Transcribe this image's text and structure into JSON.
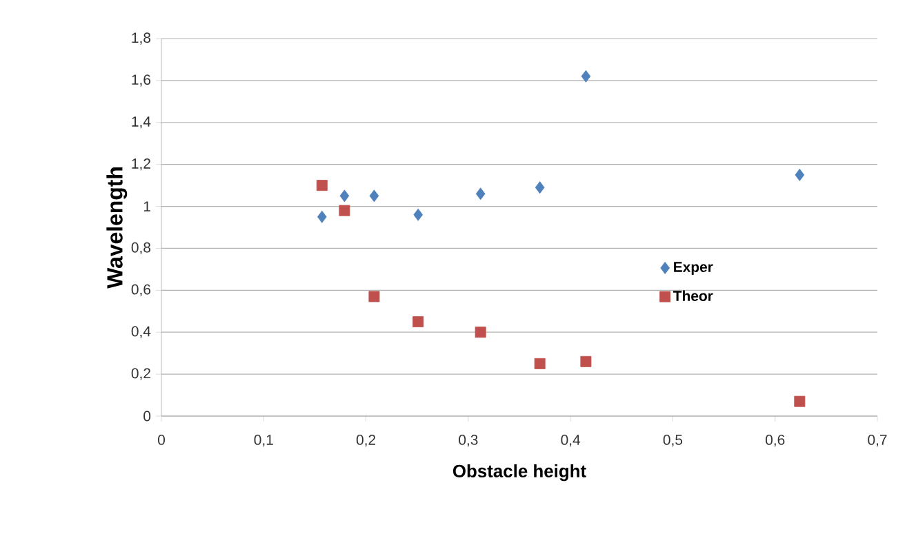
{
  "chart_data": {
    "type": "scatter",
    "xlabel": "Obstacle height",
    "ylabel": "Wavelength",
    "xlim": [
      0,
      0.7
    ],
    "ylim": [
      0,
      1.8
    ],
    "xticks": [
      0,
      {
        "value": 0.1,
        "label": "0,1"
      },
      {
        "value": 0.2,
        "label": "0,2"
      },
      {
        "value": 0.3,
        "label": "0,3"
      },
      {
        "value": 0.4,
        "label": "0,4"
      },
      {
        "value": 0.5,
        "label": "0,5"
      },
      {
        "value": 0.6,
        "label": "0,6"
      },
      {
        "value": 0.7,
        "label": "0,7"
      }
    ],
    "yticks": [
      0,
      {
        "value": 0.2,
        "label": "0,2"
      },
      {
        "value": 0.4,
        "label": "0,4"
      },
      {
        "value": 0.6,
        "label": "0,6"
      },
      {
        "value": 0.8,
        "label": "0,8"
      },
      1,
      {
        "value": 1.2,
        "label": "1,2"
      },
      {
        "value": 1.4,
        "label": "1,4"
      },
      {
        "value": 1.6,
        "label": "1,6"
      },
      {
        "value": 1.8,
        "label": "1,8"
      }
    ],
    "grid": "y",
    "legend": "right",
    "series": [
      {
        "name": "Exper",
        "color": "#4f81bd",
        "marker": "diamond",
        "x": [
          0.157,
          0.179,
          0.208,
          0.251,
          0.312,
          0.37,
          0.415,
          0.624
        ],
        "values": [
          0.95,
          1.05,
          1.05,
          0.96,
          1.06,
          1.09,
          1.62,
          1.15
        ]
      },
      {
        "name": "Theor",
        "color": "#c0504d",
        "marker": "square",
        "x": [
          0.157,
          0.179,
          0.208,
          0.251,
          0.312,
          0.37,
          0.415,
          0.624
        ],
        "values": [
          1.1,
          0.98,
          0.57,
          0.45,
          0.4,
          0.25,
          0.26,
          0.07
        ]
      }
    ]
  }
}
